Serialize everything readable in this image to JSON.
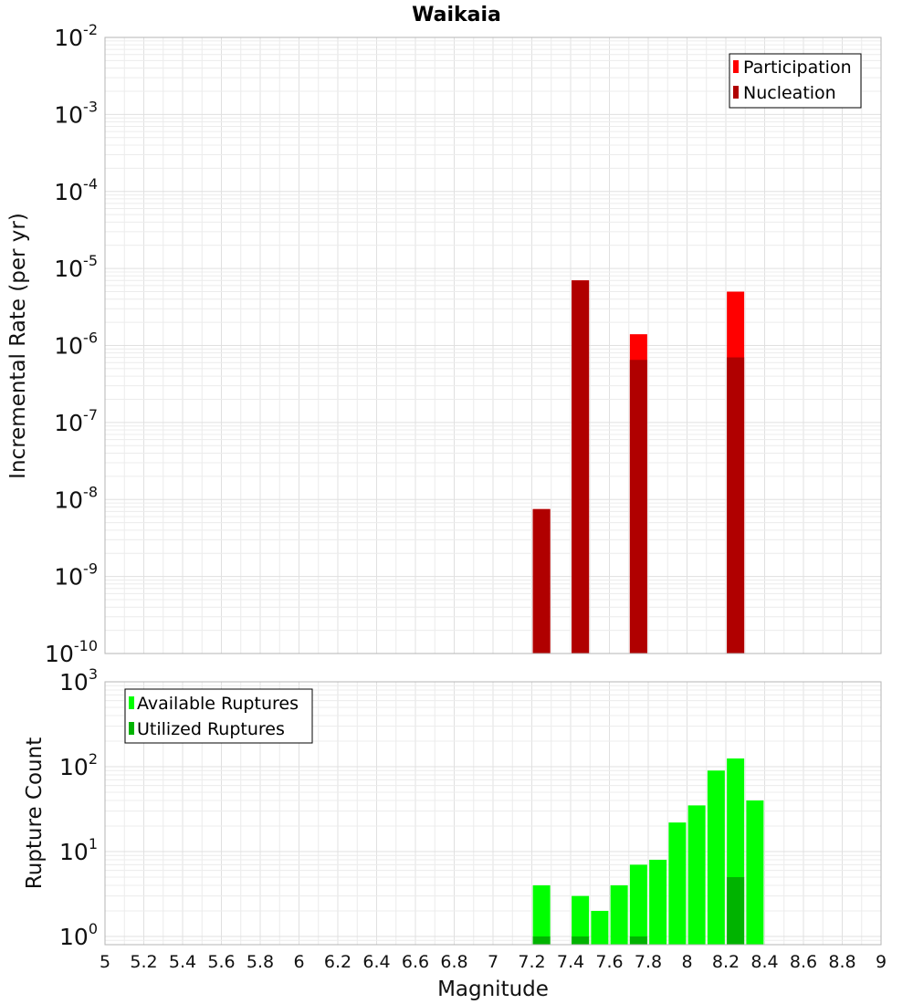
{
  "chart_data": [
    {
      "type": "bar",
      "title": "Waikaia",
      "ylabel": "Incremental Rate (per yr)",
      "yscale": "log",
      "ylim": [
        1e-10,
        0.01
      ],
      "xlim": [
        5,
        9
      ],
      "y_ticks": [
        {
          "base": "10",
          "exp": "-2",
          "value": 0.01
        },
        {
          "base": "10",
          "exp": "-3",
          "value": 0.001
        },
        {
          "base": "10",
          "exp": "-4",
          "value": 0.0001
        },
        {
          "base": "10",
          "exp": "-5",
          "value": 1e-05
        },
        {
          "base": "10",
          "exp": "-6",
          "value": 1e-06
        },
        {
          "base": "10",
          "exp": "-7",
          "value": 1e-07
        },
        {
          "base": "10",
          "exp": "-8",
          "value": 1e-08
        },
        {
          "base": "10",
          "exp": "-9",
          "value": 1e-09
        },
        {
          "base": "10",
          "exp": "-10",
          "value": 1e-10
        }
      ],
      "legend_position": "top-right",
      "series": [
        {
          "name": "Participation",
          "color": "#ff0000",
          "x": [
            7.25,
            7.45,
            7.75,
            8.25
          ],
          "values": [
            7.5e-09,
            7e-06,
            1.4e-06,
            5e-06
          ]
        },
        {
          "name": "Nucleation",
          "color": "#b00000",
          "x": [
            7.25,
            7.45,
            7.75,
            8.25
          ],
          "values": [
            7.5e-09,
            7e-06,
            6.5e-07,
            7e-07
          ]
        }
      ]
    },
    {
      "type": "bar",
      "xlabel": "Magnitude",
      "ylabel": "Rupture Count",
      "yscale": "log",
      "ylim": [
        0.8,
        1000
      ],
      "xlim": [
        5,
        9
      ],
      "y_ticks": [
        {
          "base": "10",
          "exp": "3",
          "value": 1000
        },
        {
          "base": "10",
          "exp": "2",
          "value": 100
        },
        {
          "base": "10",
          "exp": "1",
          "value": 10
        },
        {
          "base": "10",
          "exp": "0",
          "value": 1
        }
      ],
      "x_ticks": [
        "5",
        "5.2",
        "5.4",
        "5.6",
        "5.8",
        "6",
        "6.2",
        "6.4",
        "6.6",
        "6.8",
        "7",
        "7.2",
        "7.4",
        "7.6",
        "7.8",
        "8",
        "8.2",
        "8.4",
        "8.6",
        "8.8",
        "9"
      ],
      "legend_position": "top-left",
      "series": [
        {
          "name": "Available Ruptures",
          "color": "#00ff00",
          "x": [
            7.25,
            7.45,
            7.55,
            7.65,
            7.75,
            7.85,
            7.95,
            8.05,
            8.15,
            8.25,
            8.35
          ],
          "values": [
            4,
            3,
            2,
            4,
            7,
            8,
            22,
            35,
            90,
            125,
            40
          ]
        },
        {
          "name": "Utilized Ruptures",
          "color": "#00b300",
          "x": [
            7.25,
            7.45,
            7.75,
            8.25
          ],
          "values": [
            1,
            1,
            1,
            5
          ]
        }
      ]
    }
  ]
}
